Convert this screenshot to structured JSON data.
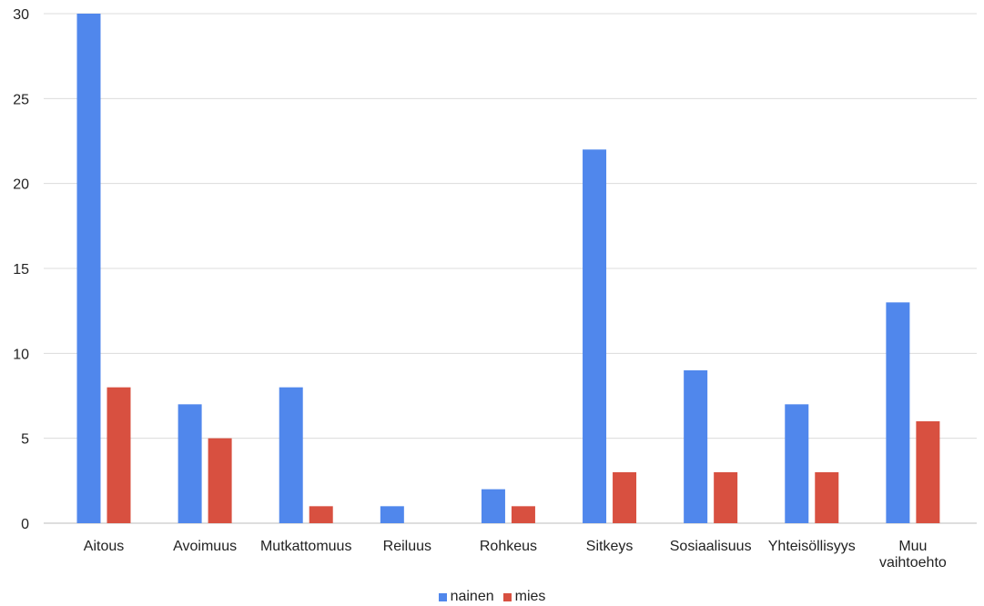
{
  "chart_data": {
    "type": "bar",
    "categories": [
      "Aitous",
      "Avoimuus",
      "Mutkattomuus",
      "Reiluus",
      "Rohkeus",
      "Sitkeys",
      "Sosiaalisuus",
      "Yhteisöllisyys",
      "Muu vaihtoehto"
    ],
    "series": [
      {
        "name": "nainen",
        "color": "#5087ec",
        "values": [
          30,
          7,
          8,
          1,
          2,
          22,
          9,
          7,
          13
        ]
      },
      {
        "name": "mies",
        "color": "#d85040",
        "values": [
          8,
          5,
          1,
          0,
          1,
          3,
          3,
          3,
          6
        ]
      }
    ],
    "ylim": [
      0,
      30
    ],
    "yticks": [
      "0",
      "5",
      "10",
      "15",
      "20",
      "25",
      "30"
    ],
    "grid": true,
    "legend_position": "bottom"
  }
}
